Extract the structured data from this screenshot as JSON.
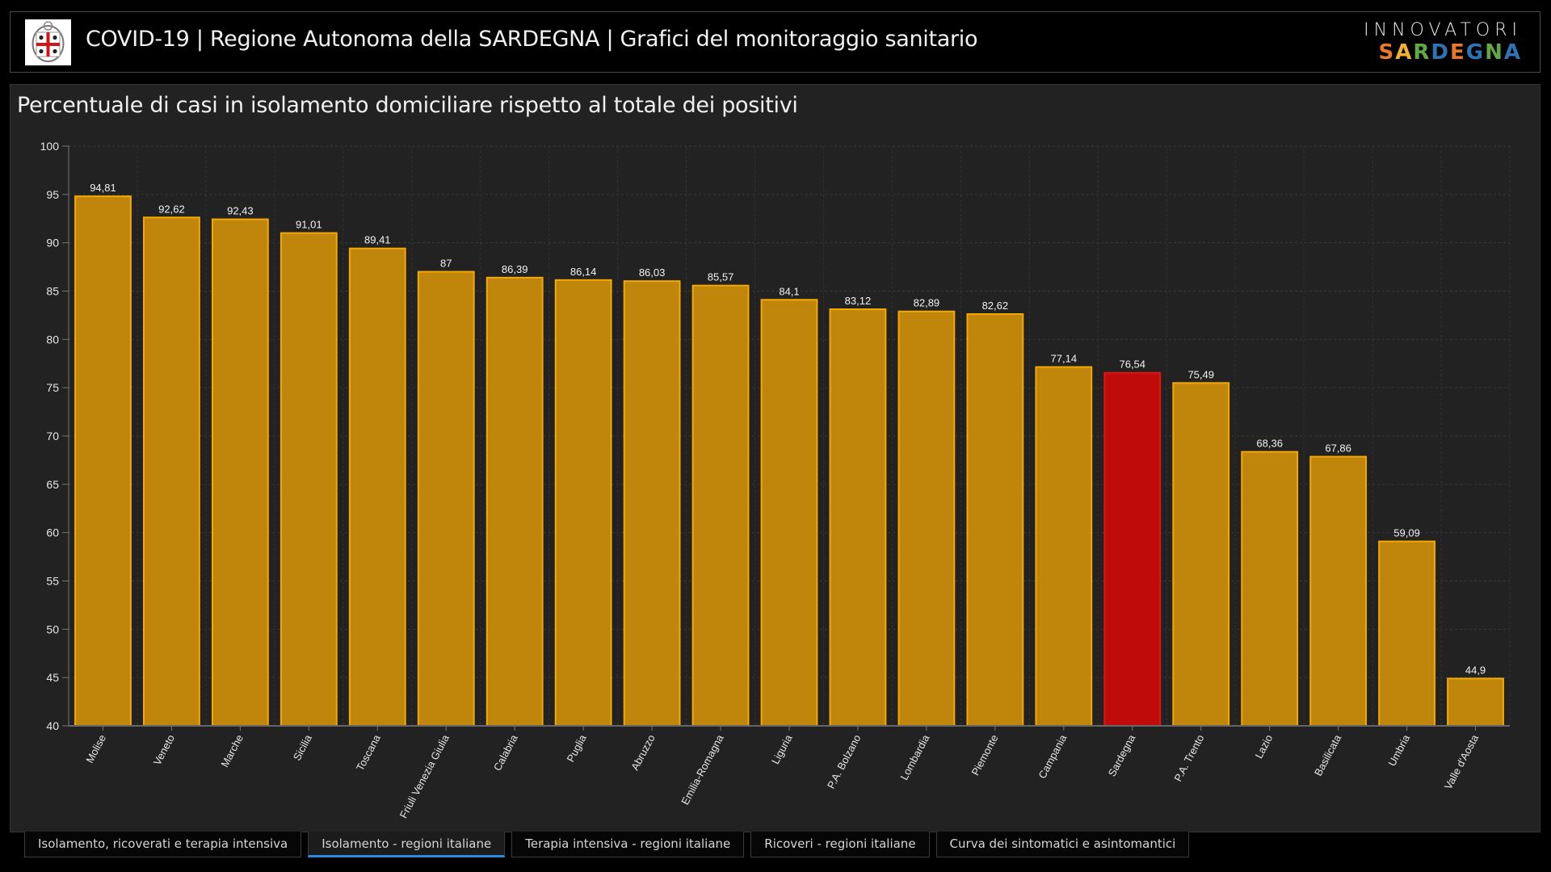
{
  "header": {
    "title": "COVID-19 | Regione Autonoma della SARDEGNA | Grafici del monitoraggio sanitario",
    "brand_top": "INNOVATORI",
    "brand_bottom_letters": [
      "S",
      "A",
      "R",
      "D",
      "E",
      "G",
      "N",
      "A"
    ],
    "brand_letter_colors": [
      "#e8792b",
      "#f2b134",
      "#63a844",
      "#2e74b5",
      "#e8792b",
      "#2e74b5",
      "#63a844",
      "#2e74b5"
    ],
    "logo_icon": "sardinia-crest-icon"
  },
  "tabs": [
    {
      "label": "Isolamento, ricoverati e terapia intensiva",
      "active": false
    },
    {
      "label": "Isolamento - regioni italiane",
      "active": true
    },
    {
      "label": "Terapia intensiva - regioni italiane",
      "active": false
    },
    {
      "label": "Ricoveri - regioni italiane",
      "active": false
    },
    {
      "label": "Curva dei sintomatici e asintomantici",
      "active": false
    }
  ],
  "colors": {
    "bar_fill": "#c0850b",
    "bar_stroke": "#f5a800",
    "highlight_fill": "#c00b0b",
    "highlight_stroke": "#e01515",
    "active_tab_accent": "#2b8ae3"
  },
  "chart_data": {
    "type": "bar",
    "title": "Percentuale di casi in isolamento domiciliare rispetto al totale dei positivi",
    "xlabel": "",
    "ylabel": "",
    "ylim": [
      40,
      100
    ],
    "yticks": [
      40,
      45,
      50,
      55,
      60,
      65,
      70,
      75,
      80,
      85,
      90,
      95,
      100
    ],
    "grid": true,
    "highlight": "Sardegna",
    "categories": [
      "Molise",
      "Veneto",
      "Marche",
      "Sicilia",
      "Toscana",
      "Friuli Venezia Giulia",
      "Calabria",
      "Puglia",
      "Abruzzo",
      "Emilia-Romagna",
      "Liguria",
      "P.A. Bolzano",
      "Lombardia",
      "Piemonte",
      "Campania",
      "Sardegna",
      "P.A. Trento",
      "Lazio",
      "Basilicata",
      "Umbria",
      "Valle d'Aosta"
    ],
    "values": [
      94.81,
      92.62,
      92.43,
      91.01,
      89.41,
      87,
      86.39,
      86.14,
      86.03,
      85.57,
      84.1,
      83.12,
      82.89,
      82.62,
      77.14,
      76.54,
      75.49,
      68.36,
      67.86,
      59.09,
      44.9
    ],
    "value_labels": [
      "94,81",
      "92,62",
      "92,43",
      "91,01",
      "89,41",
      "87",
      "86,39",
      "86,14",
      "86,03",
      "85,57",
      "84,1",
      "83,12",
      "82,89",
      "82,62",
      "77,14",
      "76,54",
      "75,49",
      "68,36",
      "67,86",
      "59,09",
      "44,9"
    ]
  }
}
